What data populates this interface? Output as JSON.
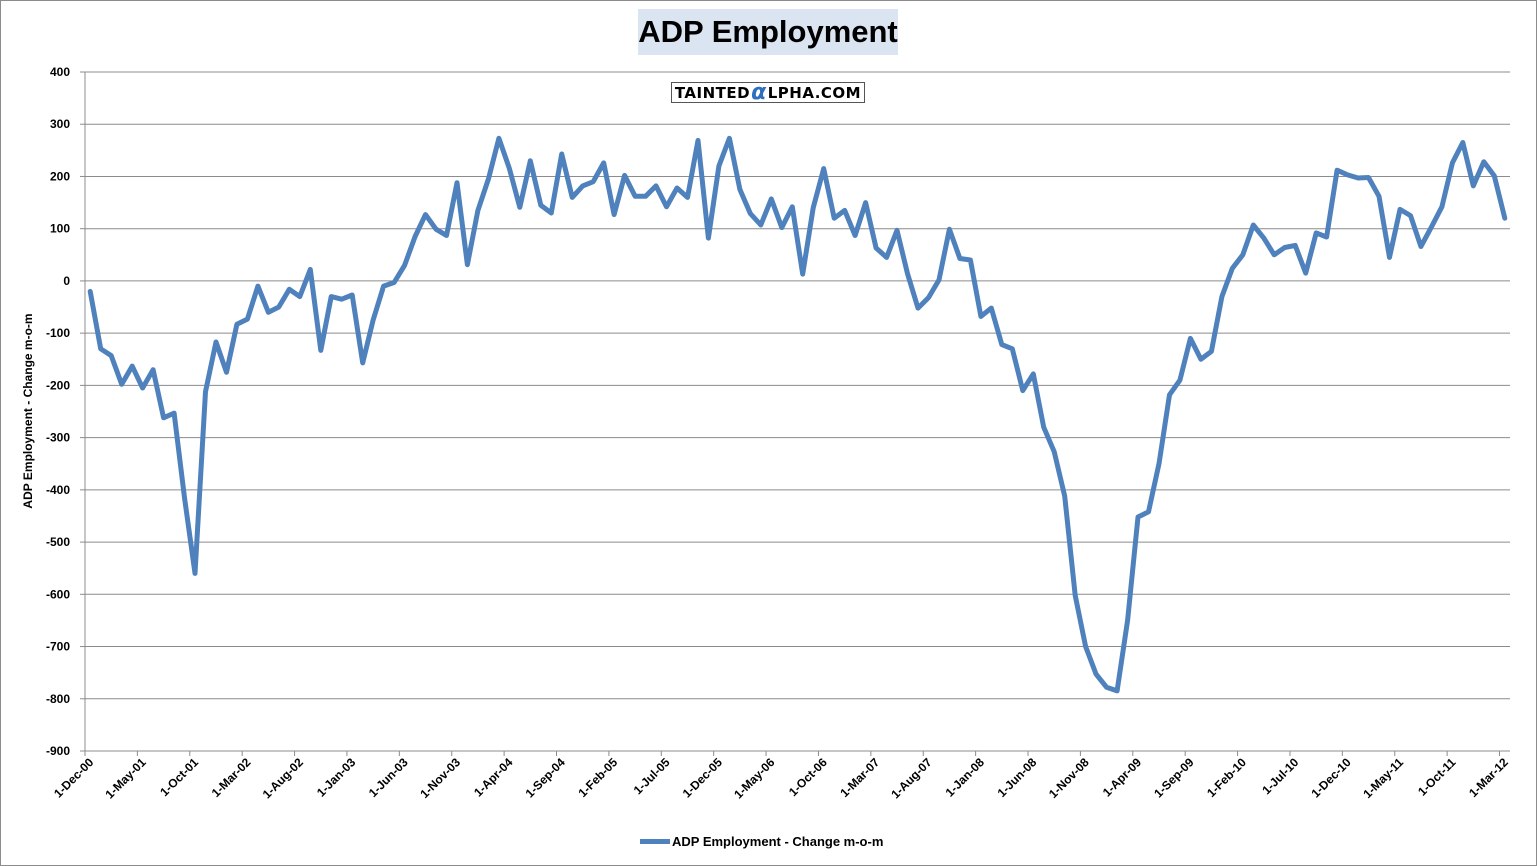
{
  "watermark": {
    "prefix": "TAINTED",
    "alpha": "α",
    "suffix": "LPHA.COM"
  },
  "chart_data": {
    "type": "line",
    "title": "ADP Employment",
    "xlabel": "",
    "ylabel": "ADP Employment - Change m-o-m",
    "ylim": [
      -900,
      400
    ],
    "yticks": [
      400,
      300,
      200,
      100,
      0,
      -100,
      -200,
      -300,
      -400,
      -500,
      -600,
      -700,
      -800,
      -900
    ],
    "grid": true,
    "legend": "bottom",
    "color": "#4f81bd",
    "xtick_labels": [
      "1-Dec-00",
      "1-May-01",
      "1-Oct-01",
      "1-Mar-02",
      "1-Aug-02",
      "1-Jan-03",
      "1-Jun-03",
      "1-Nov-03",
      "1-Apr-04",
      "1-Sep-04",
      "1-Feb-05",
      "1-Jul-05",
      "1-Dec-05",
      "1-May-06",
      "1-Oct-06",
      "1-Mar-07",
      "1-Aug-07",
      "1-Jan-08",
      "1-Jun-08",
      "1-Nov-08",
      "1-Apr-09",
      "1-Sep-09",
      "1-Feb-10",
      "1-Jul-10",
      "1-Dec-10",
      "1-May-11",
      "1-Oct-11",
      "1-Mar-12"
    ],
    "x_start": "1-Dec-00",
    "x_end": "1-Apr-12",
    "x_frequency": "monthly",
    "series": [
      {
        "name": "ADP Employment - Change m-o-m",
        "values": [
          -20,
          -130,
          -143,
          -198,
          -163,
          -205,
          -170,
          -262,
          -253,
          -415,
          -560,
          -212,
          -117,
          -175,
          -83,
          -73,
          -10,
          -60,
          -50,
          -16,
          -30,
          22,
          -133,
          -30,
          -35,
          -27,
          -157,
          -75,
          -10,
          -3,
          30,
          85,
          127,
          99,
          87,
          188,
          31,
          135,
          195,
          273,
          215,
          141,
          230,
          145,
          130,
          243,
          160,
          182,
          190,
          226,
          127,
          202,
          162,
          162,
          182,
          142,
          178,
          160,
          269,
          82,
          220,
          273,
          175,
          129,
          107,
          157,
          102,
          142,
          13,
          140,
          215,
          120,
          135,
          87,
          150,
          63,
          45,
          97,
          14,
          -52,
          -32,
          2,
          99,
          43,
          40,
          -68,
          -52,
          -122,
          -130,
          -210,
          -178,
          -280,
          -327,
          -412,
          -602,
          -700,
          -753,
          -778,
          -785,
          -650,
          -452,
          -442,
          -350,
          -218,
          -190,
          -110,
          -150,
          -135,
          -30,
          24,
          50,
          107,
          82,
          50,
          64,
          68,
          15,
          92,
          84,
          212,
          203,
          197,
          198,
          162,
          45,
          137,
          125,
          66,
          103,
          142,
          226,
          265,
          182,
          228,
          201,
          120
        ]
      }
    ]
  }
}
